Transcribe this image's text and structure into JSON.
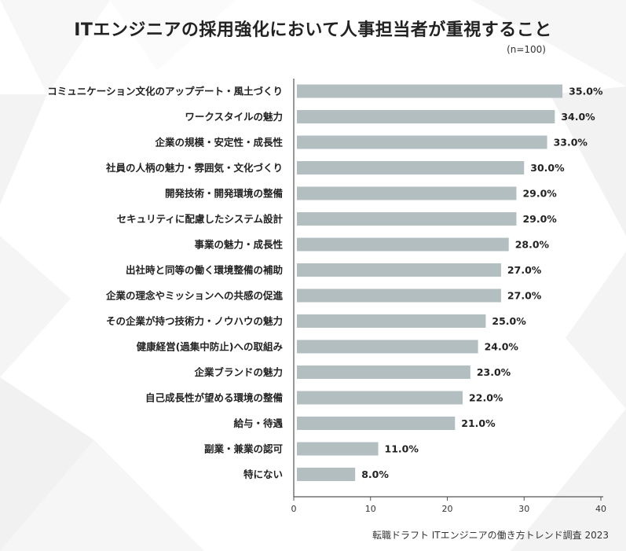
{
  "chart_data": {
    "type": "bar",
    "orientation": "horizontal",
    "title": "ITエンジニアの採用強化において人事担当者が重視すること",
    "subtitle": "(n=100)",
    "categories": [
      "コミュニケーション文化のアップデート・風土づくり",
      "ワークスタイルの魅力",
      "企業の規模・安定性・成長性",
      "社員の人柄の魅力・雰囲気・文化づくり",
      "開発技術・開発環境の整備",
      "セキュリティに配慮したシステム設計",
      "事業の魅力・成長性",
      "出社時と同等の働く環境整備の補助",
      "企業の理念やミッションへの共感の促進",
      "その企業が持つ技術力・ノウハウの魅力",
      "健康経営(過集中防止)への取組み",
      "企業ブランドの魅力",
      "自己成長性が望める環境の整備",
      "給与・待遇",
      "副業・兼業の認可",
      "特にない"
    ],
    "values": [
      35.0,
      34.0,
      33.0,
      30.0,
      29.0,
      29.0,
      28.0,
      27.0,
      27.0,
      25.0,
      24.0,
      23.0,
      22.0,
      21.0,
      11.0,
      8.0
    ],
    "value_labels": [
      "35.0%",
      "34.0%",
      "33.0%",
      "30.0%",
      "29.0%",
      "29.0%",
      "28.0%",
      "27.0%",
      "27.0%",
      "25.0%",
      "24.0%",
      "23.0%",
      "22.0%",
      "21.0%",
      "11.0%",
      "8.0%"
    ],
    "xlim": [
      0,
      40
    ],
    "xticks": [
      0,
      10,
      20,
      30,
      40
    ],
    "xtick_labels": [
      "0",
      "10",
      "20",
      "30",
      "40"
    ],
    "xlabel": "",
    "ylabel": "",
    "grid": false,
    "bar_color": "#b3bec0",
    "axis_color": "#555555"
  },
  "footer": {
    "credit": "転職ドラフト ITエンジニアの働き方トレンド調査 2023"
  }
}
